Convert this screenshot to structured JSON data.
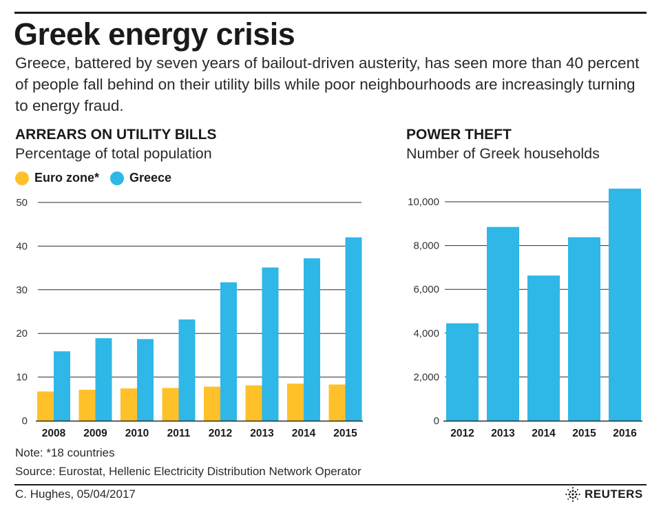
{
  "header": {
    "title": "Greek energy crisis",
    "subtitle": "Greece, battered by seven years of bailout-driven austerity, has seen more than 40 percent of people fall behind on their utility bills while poor neighbourhoods are increasingly turning to energy fraud."
  },
  "colors": {
    "euro_zone": "#FFC12A",
    "greece": "#2FB7E8",
    "grid": "#2a2a2a",
    "text": "#1a1a1a"
  },
  "arrears": {
    "heading": "ARREARS ON UTILITY BILLS",
    "subheading": "Percentage of total population",
    "legend": [
      {
        "label": "Euro zone*",
        "color": "#FFC12A"
      },
      {
        "label": "Greece",
        "color": "#2FB7E8"
      }
    ]
  },
  "theft": {
    "heading": "POWER THEFT",
    "subheading": "Number of Greek households"
  },
  "chart_data": [
    {
      "type": "bar",
      "title": "ARREARS ON UTILITY BILLS",
      "subtitle": "Percentage of total population",
      "categories": [
        "2008",
        "2009",
        "2010",
        "2011",
        "2012",
        "2013",
        "2014",
        "2015"
      ],
      "series": [
        {
          "name": "Euro zone*",
          "values": [
            6.7,
            7.1,
            7.4,
            7.5,
            7.8,
            8.1,
            8.5,
            8.3
          ]
        },
        {
          "name": "Greece",
          "values": [
            15.9,
            18.9,
            18.7,
            23.2,
            31.7,
            35.1,
            37.2,
            42.0
          ]
        }
      ],
      "yticks": [
        0,
        10,
        20,
        30,
        40,
        50
      ],
      "ylim": [
        0,
        50
      ],
      "xlabel": "",
      "ylabel": "",
      "grid": true
    },
    {
      "type": "bar",
      "title": "POWER THEFT",
      "subtitle": "Number of Greek households",
      "categories": [
        "2012",
        "2013",
        "2014",
        "2015",
        "2016"
      ],
      "values": [
        4450,
        8850,
        6630,
        8380,
        10600
      ],
      "yticks": [
        0,
        2000,
        4000,
        6000,
        8000,
        10000
      ],
      "yticklabels": [
        "0",
        "2,000",
        "4,000",
        "6,000",
        "8,000",
        "10,000"
      ],
      "ylim": [
        0,
        10000
      ],
      "xlabel": "",
      "ylabel": "",
      "grid": true
    }
  ],
  "footer": {
    "note": "Note: *18 countries",
    "source": "Source: Eurostat, Hellenic Electricity Distribution Network Operator",
    "credit": "C. Hughes, 05/04/2017",
    "brand": "REUTERS"
  }
}
